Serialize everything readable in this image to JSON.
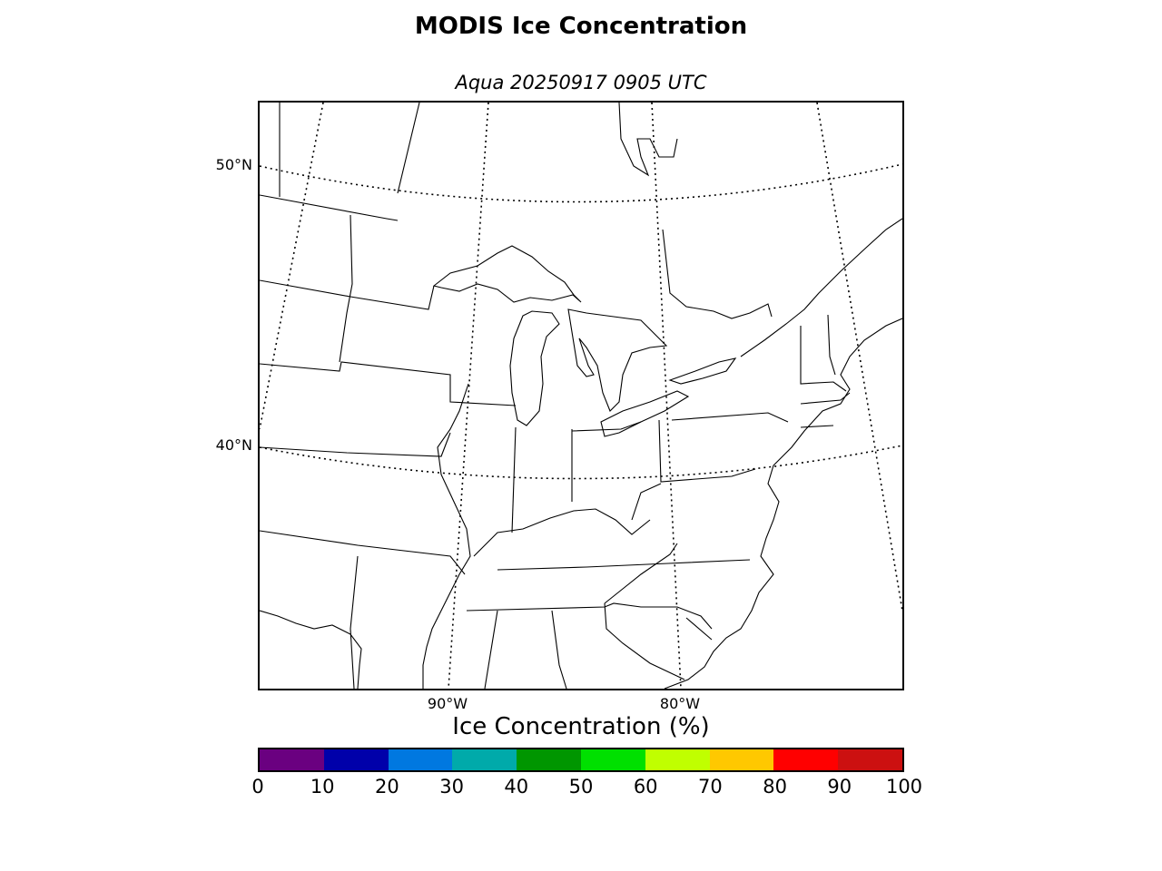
{
  "title": "MODIS Ice Concentration",
  "subtitle": "Aqua 20250917 0905 UTC",
  "map": {
    "lat_labels": [
      "50°N",
      "40°N"
    ],
    "lon_labels": [
      "90°W",
      "80°W"
    ],
    "line_color": "#000000",
    "background": "#ffffff"
  },
  "colorbar": {
    "label": "Ice Concentration (%)",
    "ticks": [
      "0",
      "10",
      "20",
      "30",
      "40",
      "50",
      "60",
      "70",
      "80",
      "90",
      "100"
    ],
    "colors": [
      "#6a0080",
      "#0000aa",
      "#0078e0",
      "#00aaaa",
      "#009600",
      "#00e000",
      "#c0ff00",
      "#ffc800",
      "#ff0000",
      "#cc1010"
    ]
  }
}
